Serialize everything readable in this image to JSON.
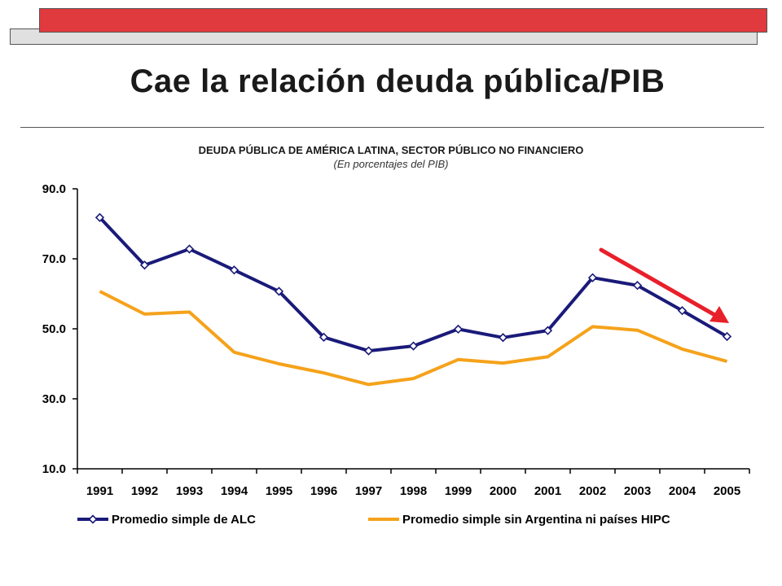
{
  "slide": {
    "title": "Cae la relación deuda pública/PIB"
  },
  "colors": {
    "deco_red": "#e03a3e",
    "deco_gray": "#e0e0e0",
    "series_alc": "#1a1a7a",
    "series_sin": "#f5a21b",
    "arrow": "#e8202a"
  },
  "chart_data": {
    "type": "line",
    "title": "DEUDA PÚBLICA DE AMÉRICA LATINA, SECTOR PÚBLICO NO FINANCIERO",
    "subtitle": "(En porcentajes del PIB)",
    "xlabel": "",
    "ylabel": "",
    "categories": [
      "1991",
      "1992",
      "1993",
      "1994",
      "1995",
      "1996",
      "1997",
      "1998",
      "1999",
      "2000",
      "2001",
      "2002",
      "2003",
      "2004",
      "2005"
    ],
    "ylim": [
      10,
      90
    ],
    "yticks": [
      "90.0",
      "70.0",
      "50.0",
      "30.0",
      "10.0"
    ],
    "grid": false,
    "legend_position": "bottom",
    "series": [
      {
        "name": "Promedio simple de ALC",
        "marker": "diamond",
        "values": [
          81.8,
          68.2,
          72.8,
          66.8,
          60.7,
          47.6,
          43.7,
          45.1,
          49.9,
          47.5,
          49.5,
          64.6,
          62.4,
          55.2,
          47.8
        ]
      },
      {
        "name": "Promedio simple sin Argentina ni países HIPC",
        "marker": "none",
        "values": [
          60.7,
          54.2,
          54.8,
          43.3,
          40.0,
          37.4,
          34.1,
          35.8,
          41.2,
          40.2,
          42.0,
          50.6,
          49.6,
          44.2,
          40.7
        ]
      }
    ],
    "annotation": {
      "type": "arrow",
      "meaning": "downward trend 2003-2005"
    }
  }
}
